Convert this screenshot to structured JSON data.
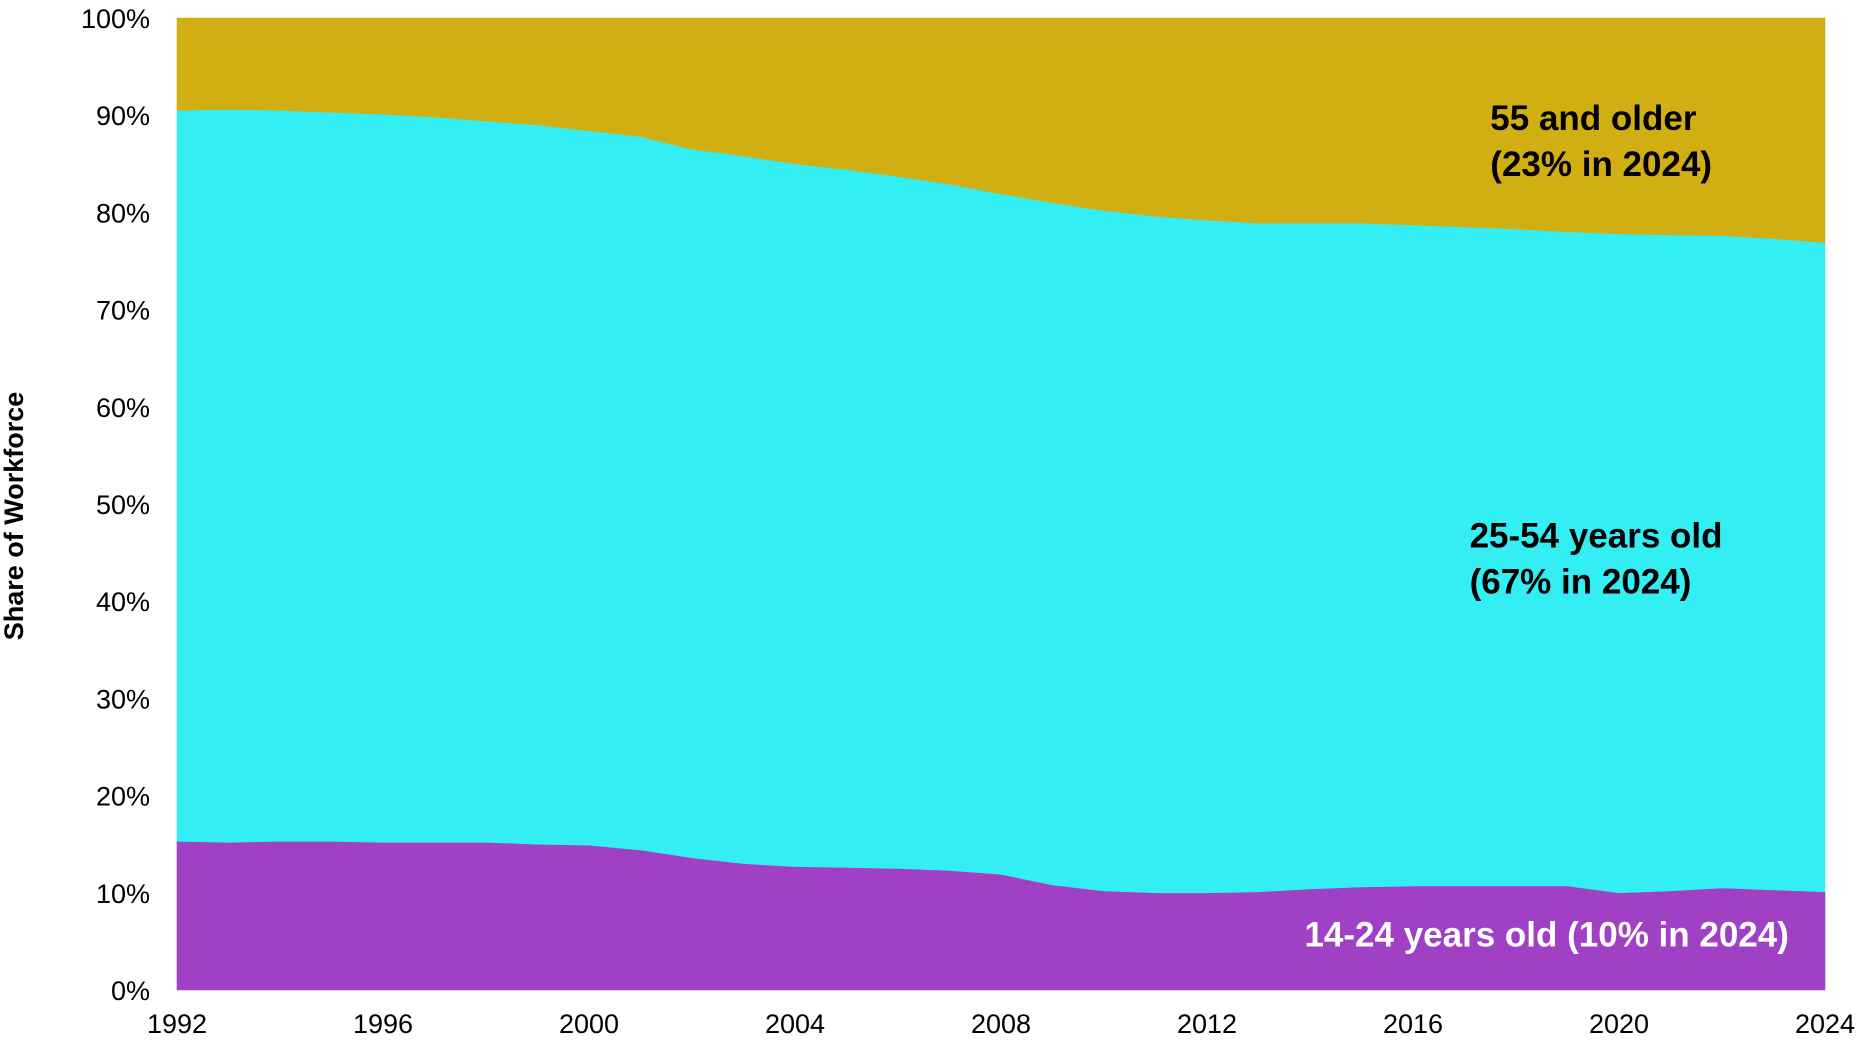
{
  "chart_data": {
    "type": "area",
    "stacked": true,
    "title": "",
    "xlabel": "",
    "ylabel": "Share of Workforce",
    "xlim": [
      1992,
      2024
    ],
    "ylim": [
      0,
      100
    ],
    "grid": false,
    "legend": "none",
    "x": [
      1992,
      1993,
      1994,
      1995,
      1996,
      1997,
      1998,
      1999,
      2000,
      2001,
      2002,
      2003,
      2004,
      2005,
      2006,
      2007,
      2008,
      2009,
      2010,
      2011,
      2012,
      2013,
      2014,
      2015,
      2016,
      2017,
      2018,
      2019,
      2020,
      2021,
      2022,
      2023,
      2024
    ],
    "x_ticks": [
      "1992",
      "1996",
      "2000",
      "2004",
      "2008",
      "2012",
      "2016",
      "2020",
      "2024"
    ],
    "y_ticks": [
      "0%",
      "10%",
      "20%",
      "30%",
      "40%",
      "50%",
      "60%",
      "70%",
      "80%",
      "90%",
      "100%"
    ],
    "y_tick_values": [
      0,
      10,
      20,
      30,
      40,
      50,
      60,
      70,
      80,
      90,
      100
    ],
    "series": [
      {
        "name": "14-24 years old",
        "color": "#A040C4",
        "values": [
          15.3,
          15.2,
          15.3,
          15.3,
          15.2,
          15.2,
          15.2,
          15.0,
          14.9,
          14.4,
          13.6,
          13.0,
          12.7,
          12.6,
          12.5,
          12.3,
          11.9,
          10.8,
          10.2,
          10.0,
          10.0,
          10.1,
          10.4,
          10.6,
          10.7,
          10.7,
          10.7,
          10.7,
          10.0,
          10.2,
          10.5,
          10.3,
          10.1
        ]
      },
      {
        "name": "25-54 years old",
        "color": "#33EEF2",
        "values": [
          75.2,
          75.4,
          75.2,
          75.0,
          74.9,
          74.6,
          74.2,
          74.0,
          73.5,
          73.4,
          72.9,
          72.8,
          72.3,
          71.8,
          71.2,
          70.6,
          70.0,
          70.2,
          70.0,
          69.6,
          69.2,
          68.8,
          68.5,
          68.3,
          68.0,
          67.8,
          67.6,
          67.3,
          67.8,
          67.5,
          67.1,
          67.0,
          66.8
        ]
      },
      {
        "name": "55 and older",
        "color": "#D1AF13",
        "values": [
          9.5,
          9.4,
          9.5,
          9.7,
          9.9,
          10.2,
          10.6,
          11.0,
          11.6,
          12.2,
          13.5,
          14.2,
          15.0,
          15.6,
          16.3,
          17.1,
          18.1,
          19.0,
          19.8,
          20.4,
          20.8,
          21.1,
          21.1,
          21.1,
          21.3,
          21.5,
          21.7,
          22.0,
          22.2,
          22.3,
          22.4,
          22.7,
          23.1
        ]
      }
    ],
    "annotations": [
      {
        "series": "55 and older",
        "lines": [
          "55 and older",
          "(23% in 2024)"
        ],
        "color": "#000000",
        "align": "left",
        "x": 2017.5,
        "y": 88.5
      },
      {
        "series": "25-54 years old",
        "lines": [
          "25-54 years old",
          "(67% in 2024)"
        ],
        "color": "#000000",
        "align": "left",
        "x": 2017.1,
        "y": 45.5
      },
      {
        "series": "14-24 years old",
        "lines": [
          "14-24 years old (10% in 2024)"
        ],
        "color": "#FFFFFF",
        "align": "right",
        "x": 2023.3,
        "y": 4.5
      }
    ]
  }
}
